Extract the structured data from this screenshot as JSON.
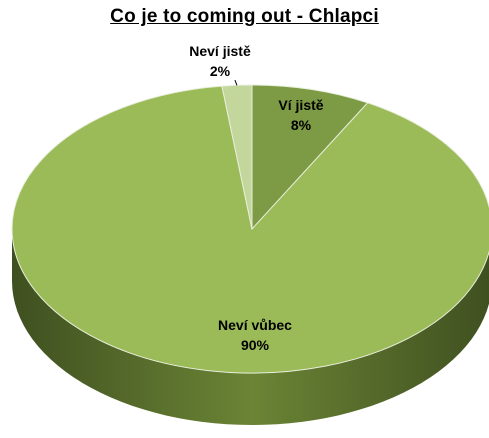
{
  "chart_data": {
    "type": "pie",
    "title": "Co je to coming out - Chlapci",
    "slices": [
      {
        "label": "Ví jistě",
        "value": 8,
        "value_label": "8%",
        "color": "#7d9a45"
      },
      {
        "label": "Neví vůbec",
        "value": 90,
        "value_label": "90%",
        "color": "#9bbb59"
      },
      {
        "label": "Neví jistě",
        "value": 2,
        "value_label": "2%",
        "color": "#c3d69b"
      }
    ],
    "start_angle_deg": 0,
    "style": "3d",
    "side_color": "#5f7530",
    "label_color": "#000000"
  }
}
